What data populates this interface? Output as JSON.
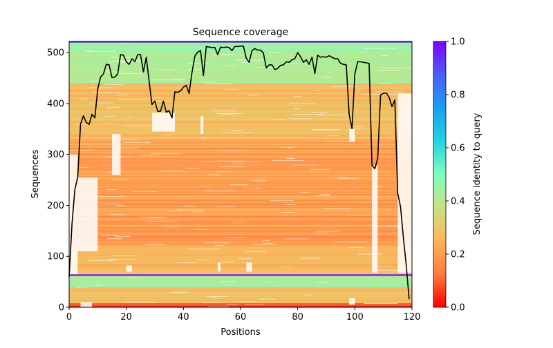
{
  "chart_data": {
    "type": "heatmap",
    "title": "Sequence coverage",
    "xlabel": "Positions",
    "ylabel": "Sequences",
    "xlim": [
      0,
      120
    ],
    "ylim": [
      0,
      522
    ],
    "xticks": [
      0,
      20,
      40,
      60,
      80,
      100,
      120
    ],
    "yticks": [
      0,
      100,
      200,
      300,
      400,
      500
    ],
    "colorbar": {
      "label": "Sequence identity to query",
      "range": [
        0.0,
        1.0
      ],
      "ticks": [
        "0.0",
        "0.2",
        "0.4",
        "0.6",
        "0.8",
        "1.0"
      ],
      "colormap": "rainbow_r",
      "stops": [
        "#ff0000",
        "#ff7a3f",
        "#ffb55a",
        "#c9e27e",
        "#7efcc0",
        "#22d4e2",
        "#1b9ef0",
        "#4b5cf6",
        "#8000ff"
      ]
    },
    "query_rows": [
      63,
      521
    ],
    "coverage_line": {
      "color": "#000000",
      "positions": [
        0,
        1,
        2,
        3,
        4,
        5,
        6,
        7,
        8,
        9,
        10,
        11,
        12,
        13,
        14,
        15,
        16,
        17,
        18,
        19,
        20,
        21,
        22,
        23,
        24,
        25,
        26,
        27,
        28,
        29,
        30,
        31,
        32,
        33,
        34,
        35,
        36,
        37,
        38,
        39,
        40,
        41,
        42,
        43,
        44,
        45,
        46,
        47,
        48,
        49,
        50,
        51,
        52,
        53,
        54,
        55,
        56,
        57,
        58,
        59,
        60,
        61,
        62,
        63,
        64,
        65,
        66,
        67,
        68,
        69,
        70,
        71,
        72,
        73,
        74,
        75,
        76,
        77,
        78,
        79,
        80,
        81,
        82,
        83,
        84,
        85,
        86,
        87,
        88,
        89,
        90,
        91,
        92,
        93,
        94,
        95,
        96,
        97,
        98,
        99,
        100,
        101,
        102,
        103,
        104,
        105,
        106,
        107,
        108,
        109,
        110,
        111,
        112,
        113,
        114,
        115,
        116,
        117,
        118,
        119
      ],
      "values": [
        60,
        163,
        231,
        255,
        360,
        376,
        363,
        359,
        379,
        372,
        428,
        452,
        458,
        477,
        476,
        451,
        452,
        458,
        496,
        495,
        482,
        477,
        488,
        482,
        496,
        496,
        462,
        491,
        444,
        398,
        405,
        385,
        385,
        405,
        383,
        386,
        372,
        423,
        422,
        425,
        432,
        436,
        420,
        461,
        493,
        501,
        504,
        455,
        512,
        511,
        510,
        510,
        496,
        511,
        510,
        511,
        510,
        504,
        512,
        512,
        513,
        513,
        489,
        481,
        504,
        508,
        505,
        505,
        499,
        470,
        476,
        476,
        467,
        469,
        475,
        476,
        482,
        481,
        486,
        488,
        500,
        492,
        481,
        486,
        477,
        491,
        459,
        495,
        491,
        492,
        491,
        494,
        491,
        488,
        488,
        479,
        477,
        476,
        379,
        351,
        458,
        482,
        482,
        481,
        480,
        479,
        279,
        272,
        292,
        417,
        420,
        421,
        412,
        394,
        407,
        224,
        197,
        136,
        82,
        16
      ]
    },
    "bands": [
      {
        "from": 0,
        "to": 8,
        "identity": 0.08
      },
      {
        "from": 8,
        "to": 40,
        "identity": 0.28
      },
      {
        "from": 40,
        "to": 63,
        "identity": 0.45
      },
      {
        "from": 63,
        "to": 65,
        "identity": 1.0
      },
      {
        "from": 65,
        "to": 120,
        "identity": 0.26
      },
      {
        "from": 120,
        "to": 330,
        "identity": 0.2
      },
      {
        "from": 330,
        "to": 440,
        "identity": 0.27
      },
      {
        "from": 440,
        "to": 521,
        "identity": 0.42
      },
      {
        "from": 521,
        "to": 522,
        "identity": 0.88
      }
    ],
    "gaps": [
      {
        "x0": 0,
        "x1": 3,
        "y0": 65,
        "y1": 300
      },
      {
        "x0": 3,
        "x1": 10,
        "y0": 110,
        "y1": 255
      },
      {
        "x0": 15,
        "x1": 18,
        "y0": 260,
        "y1": 340
      },
      {
        "x0": 29,
        "x1": 37,
        "y0": 345,
        "y1": 382
      },
      {
        "x0": 46,
        "x1": 47,
        "y0": 340,
        "y1": 375
      },
      {
        "x0": 98,
        "x1": 100,
        "y0": 325,
        "y1": 350
      },
      {
        "x0": 106,
        "x1": 108,
        "y0": 68,
        "y1": 278
      },
      {
        "x0": 115,
        "x1": 120,
        "y0": 68,
        "y1": 420
      },
      {
        "x0": 20,
        "x1": 22,
        "y0": 70,
        "y1": 82
      },
      {
        "x0": 52,
        "x1": 53,
        "y0": 70,
        "y1": 88
      },
      {
        "x0": 62,
        "x1": 64,
        "y0": 70,
        "y1": 88
      },
      {
        "x0": 98,
        "x1": 100,
        "y0": 5,
        "y1": 18
      },
      {
        "x0": 4,
        "x1": 8,
        "y0": 0,
        "y1": 10
      }
    ]
  }
}
